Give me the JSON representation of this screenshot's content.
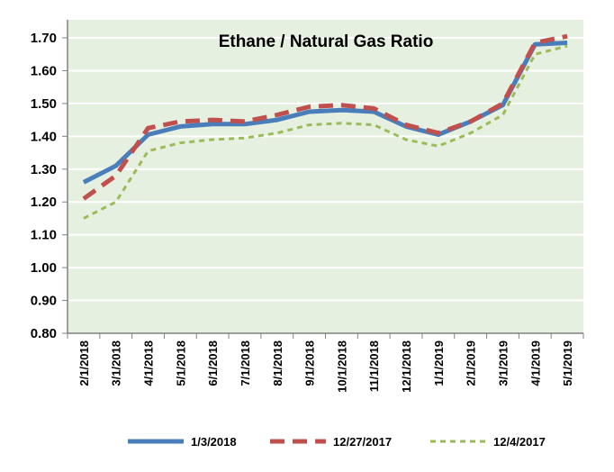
{
  "chart_data": {
    "type": "line",
    "title": "Ethane / Natural Gas Ratio",
    "xlabel": "",
    "ylabel": "",
    "ylim": [
      0.8,
      1.7
    ],
    "yticks": [
      "0.80",
      "0.90",
      "1.00",
      "1.10",
      "1.20",
      "1.30",
      "1.40",
      "1.50",
      "1.60",
      "1.70"
    ],
    "grid": true,
    "legend_position": "bottom",
    "categories": [
      "2/1/2018",
      "3/1/2018",
      "4/1/2018",
      "5/1/2018",
      "6/1/2018",
      "7/1/2018",
      "8/1/2018",
      "9/1/2018",
      "10/1/2018",
      "11/1/2018",
      "12/1/2018",
      "1/1/2019",
      "2/1/2019",
      "3/1/2019",
      "4/1/2019",
      "5/1/2019"
    ],
    "series": [
      {
        "name": "1/3/2018",
        "color": "#4a7ebb",
        "style": "solid",
        "values": [
          1.26,
          1.31,
          1.405,
          1.43,
          1.437,
          1.437,
          1.45,
          1.475,
          1.48,
          1.475,
          1.43,
          1.405,
          1.445,
          1.495,
          1.68,
          1.685
        ]
      },
      {
        "name": "12/27/2017",
        "color": "#c0504d",
        "style": "dash",
        "values": [
          1.21,
          1.28,
          1.425,
          1.445,
          1.45,
          1.445,
          1.465,
          1.49,
          1.495,
          1.485,
          1.435,
          1.41,
          1.445,
          1.5,
          1.685,
          1.705
        ]
      },
      {
        "name": "12/4/2017",
        "color": "#9bbb59",
        "style": "dot",
        "values": [
          1.15,
          1.2,
          1.355,
          1.38,
          1.39,
          1.395,
          1.41,
          1.435,
          1.44,
          1.435,
          1.39,
          1.37,
          1.41,
          1.465,
          1.65,
          1.675
        ]
      }
    ]
  }
}
